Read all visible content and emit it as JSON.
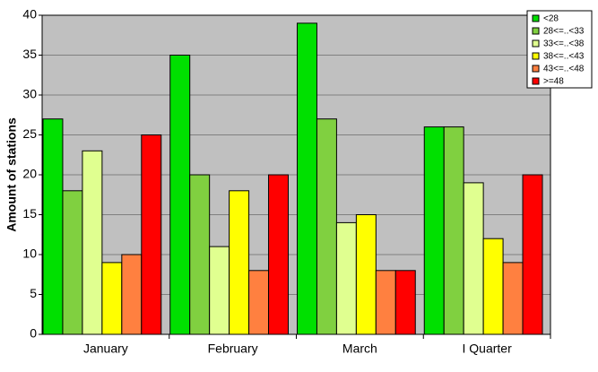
{
  "chart_data": {
    "type": "bar",
    "y_label": "Amount of stations",
    "categories": [
      "January",
      "February",
      "March",
      "I Quarter"
    ],
    "series": [
      {
        "name": "<28",
        "color": "#00e000",
        "values": [
          27,
          35,
          39,
          26
        ]
      },
      {
        "name": "28<=..<33",
        "color": "#80d040",
        "values": [
          18,
          20,
          27,
          26
        ]
      },
      {
        "name": "33<=..<38",
        "color": "#e0ff90",
        "values": [
          23,
          11,
          14,
          19
        ]
      },
      {
        "name": "38<=..<43",
        "color": "#ffff00",
        "values": [
          9,
          18,
          15,
          12
        ]
      },
      {
        "name": "43<=..<48",
        "color": "#ff8040",
        "values": [
          10,
          8,
          8,
          9
        ]
      },
      {
        "name": ">=48",
        "color": "#ff0000",
        "values": [
          25,
          20,
          8,
          20
        ]
      }
    ],
    "ylim": [
      0,
      40
    ],
    "yticks": [
      0,
      5,
      10,
      15,
      20,
      25,
      30,
      35,
      40
    ],
    "grid": true,
    "legend": "top-right"
  }
}
